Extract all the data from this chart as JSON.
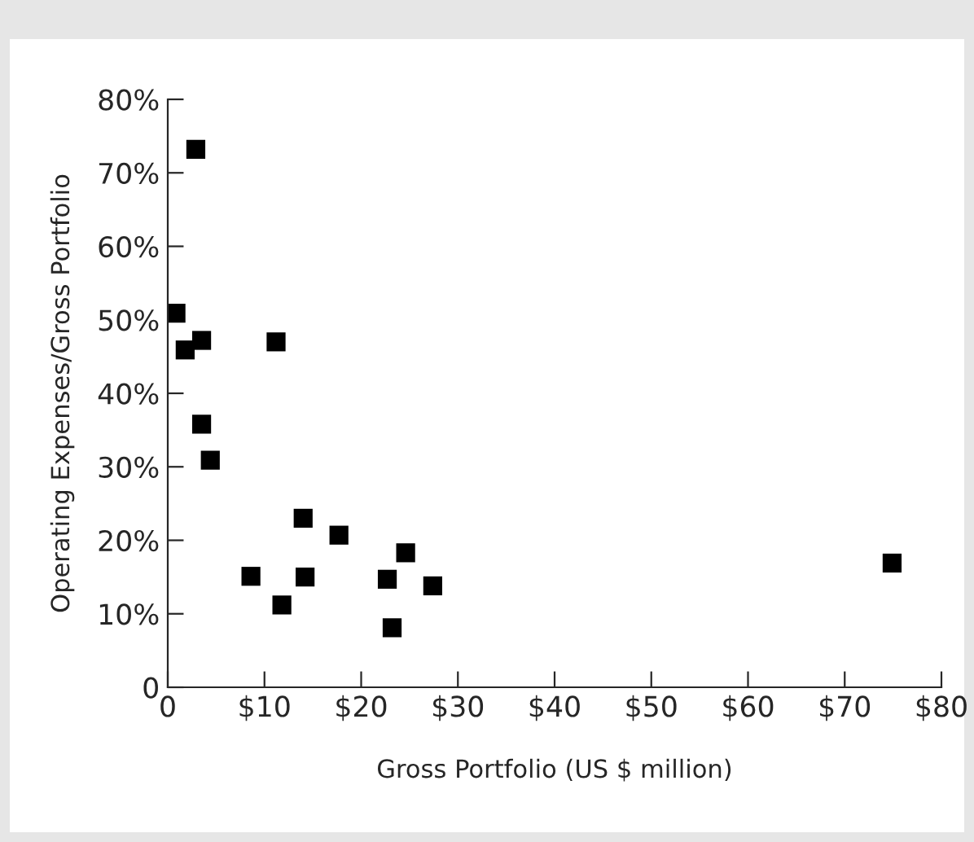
{
  "chart_data": {
    "type": "scatter",
    "xlabel": "Gross Portfolio (US $ million)",
    "ylabel": "Operating Expenses/Gross Portfolio",
    "x": [
      2.9,
      0.85,
      1.8,
      3.5,
      11.2,
      3.5,
      4.4,
      8.6,
      14.0,
      14.2,
      11.8,
      17.7,
      22.7,
      24.6,
      23.2,
      27.4,
      74.9
    ],
    "series": [
      {
        "color": "#000000",
        "values": [
          73.2,
          50.9,
          45.9,
          47.2,
          47.0,
          35.8,
          30.9,
          15.1,
          23.0,
          15.0,
          11.2,
          20.7,
          14.7,
          18.3,
          8.1,
          13.8,
          16.9
        ]
      }
    ],
    "marker": "square",
    "xlim": [
      0,
      80
    ],
    "xticks": [
      0,
      {
        "value": 10,
        "label": "$10"
      },
      {
        "value": 20,
        "label": "$20"
      },
      {
        "value": 30,
        "label": "$30"
      },
      {
        "value": 40,
        "label": "$40"
      },
      {
        "value": 50,
        "label": "$50"
      },
      {
        "value": 60,
        "label": "$60"
      },
      {
        "value": 70,
        "label": "$70"
      },
      {
        "value": 80,
        "label": "$80"
      }
    ],
    "ylim": [
      0,
      80
    ],
    "yticks": [
      0,
      {
        "value": 10,
        "label": "10%"
      },
      {
        "value": 20,
        "label": "20%"
      },
      {
        "value": 30,
        "label": "30%"
      },
      {
        "value": 40,
        "label": "40%"
      },
      {
        "value": 50,
        "label": "50%"
      },
      {
        "value": 60,
        "label": "60%"
      },
      {
        "value": 70,
        "label": "70%"
      },
      {
        "value": 80,
        "label": "80%"
      }
    ]
  }
}
